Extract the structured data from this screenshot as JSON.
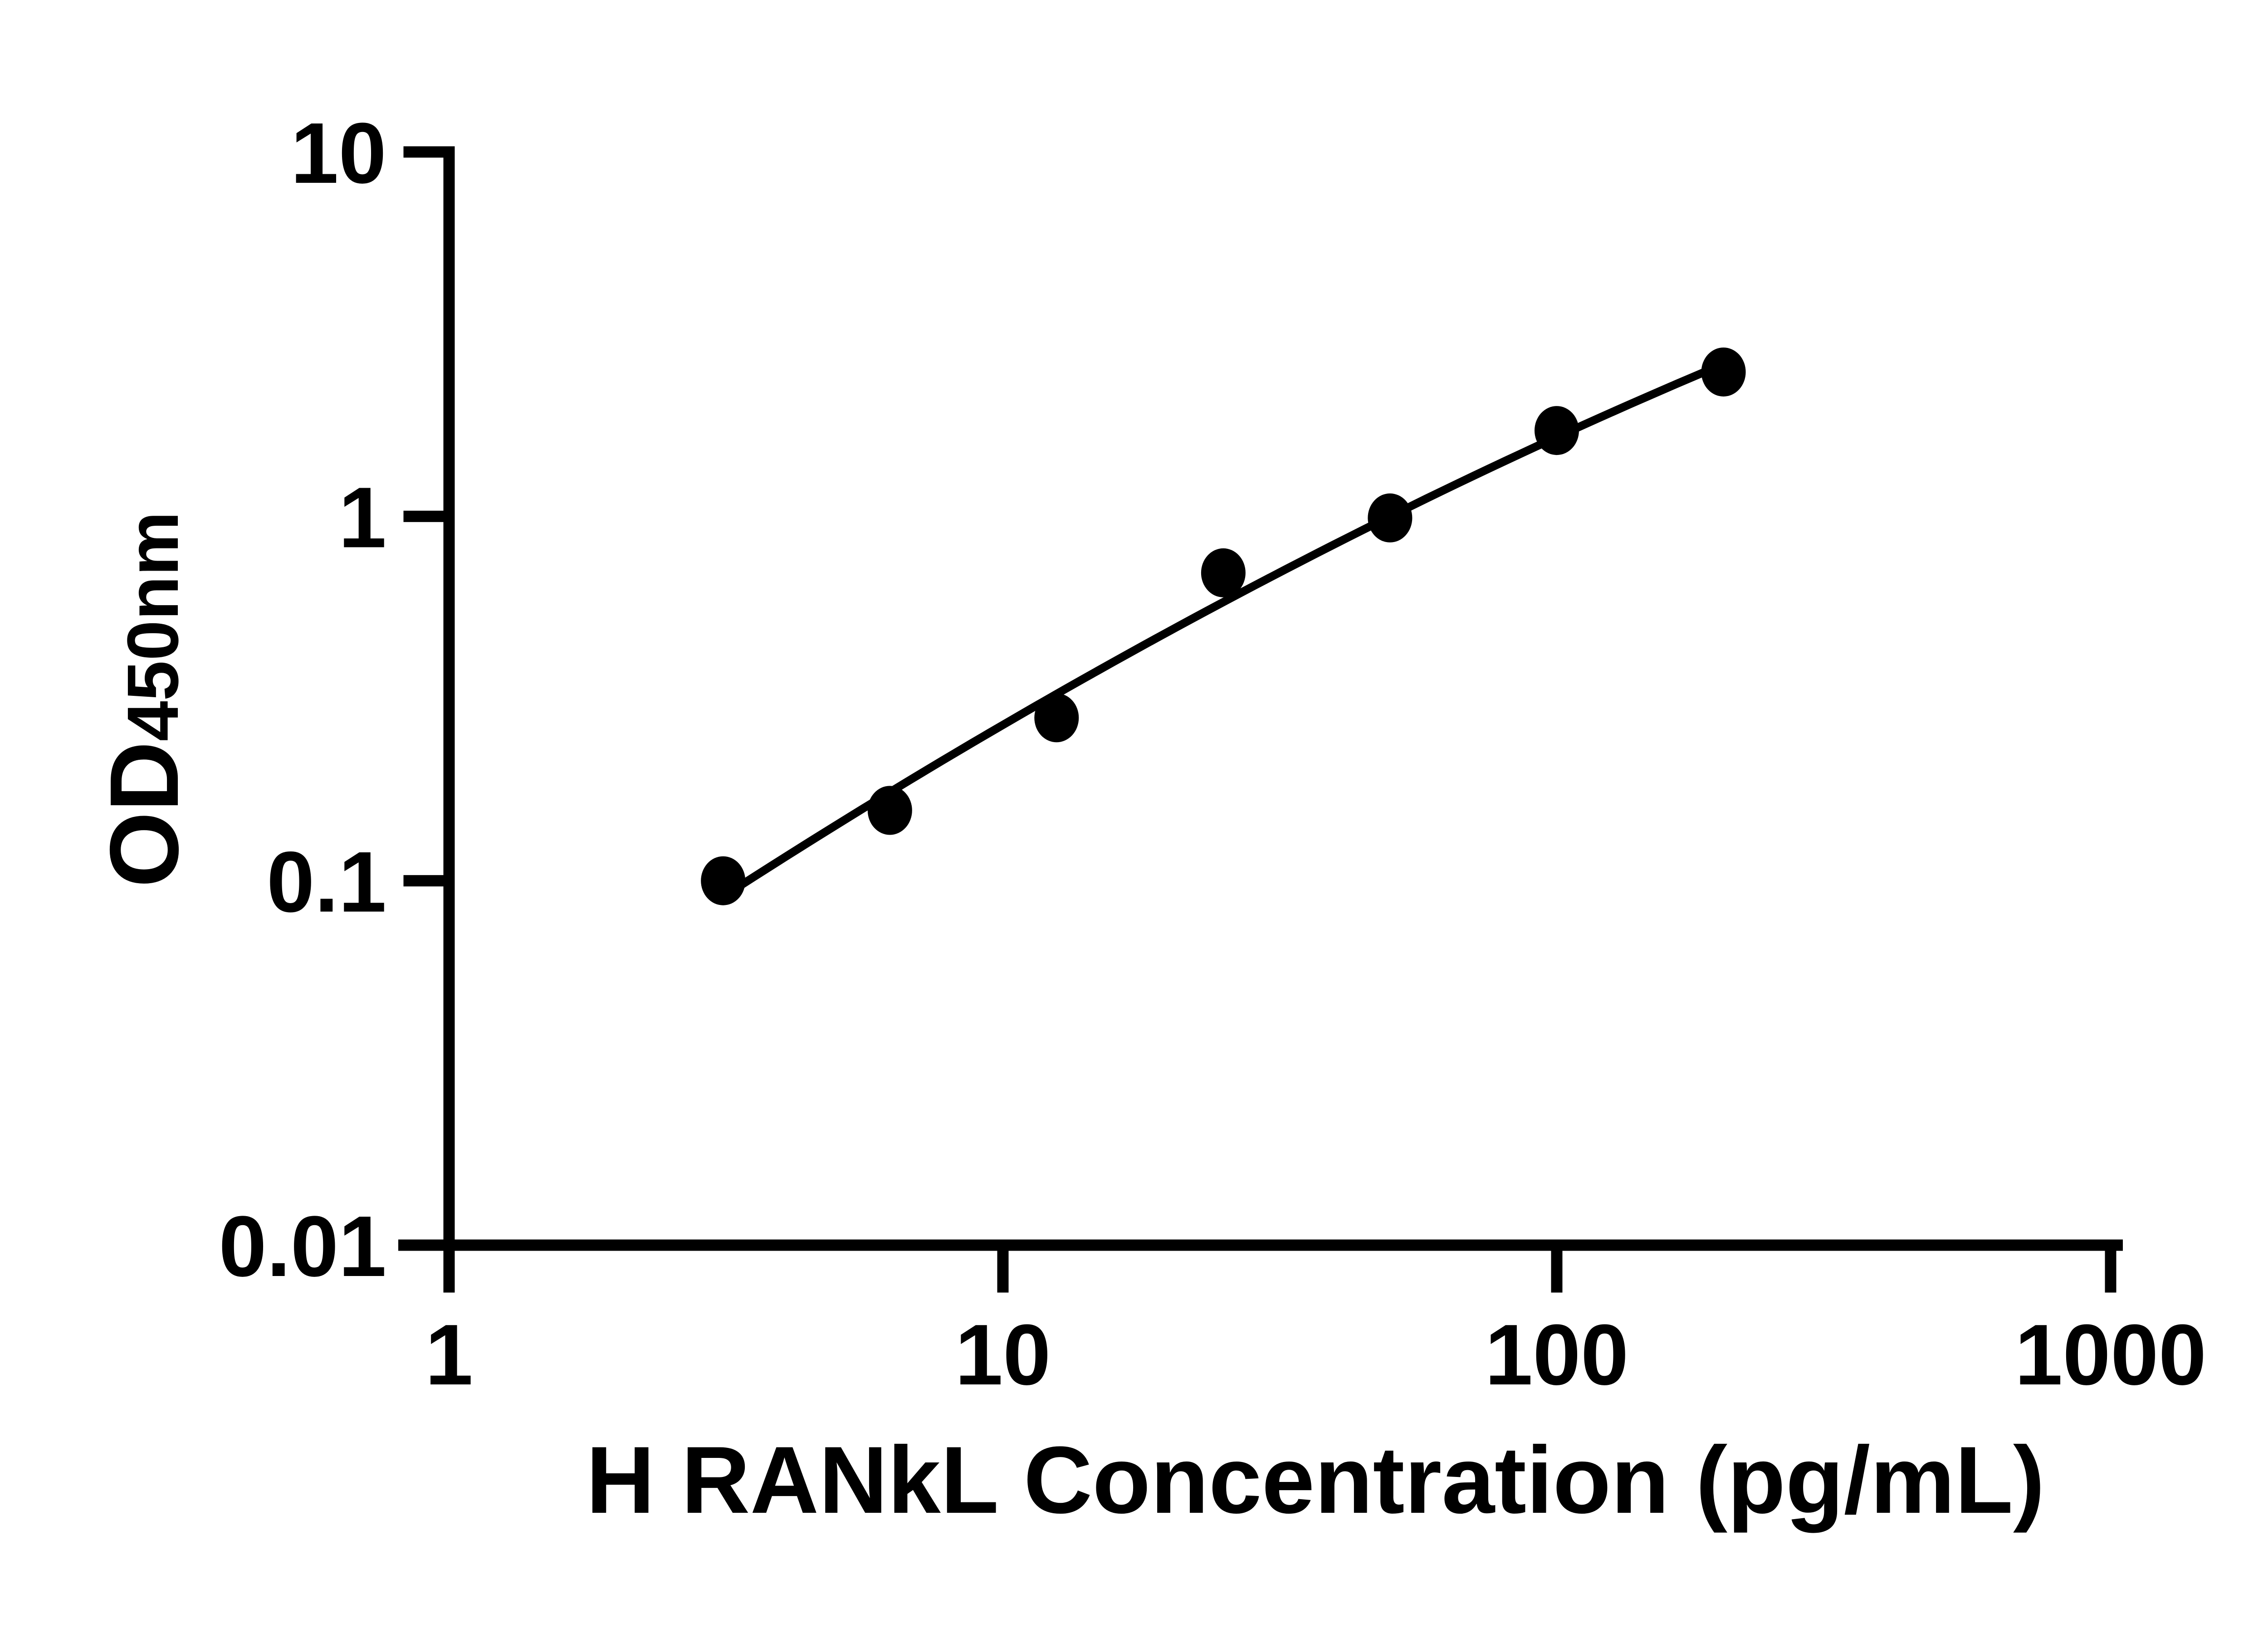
{
  "figure": {
    "background": "#ffffff",
    "ink_color": "#000000"
  },
  "chart_data": {
    "type": "scatter",
    "title": "",
    "xlabel": "H RANkL Concentration (pg/mL)",
    "ylabel": {
      "main": "OD",
      "sub": "450nm"
    },
    "x_scale": "log10",
    "y_scale": "log10",
    "xlim": [
      1,
      1000
    ],
    "ylim": [
      0.01,
      10
    ],
    "grid": false,
    "legend": null,
    "x_ticks": [
      {
        "value": 1,
        "label": "1"
      },
      {
        "value": 10,
        "label": "10"
      },
      {
        "value": 100,
        "label": "100"
      },
      {
        "value": 1000,
        "label": "1000"
      }
    ],
    "y_ticks": [
      {
        "value": 10,
        "label": "10"
      },
      {
        "value": 1,
        "label": "1"
      },
      {
        "value": 0.1,
        "label": "0.1"
      },
      {
        "value": 0.01,
        "label": "0.01"
      }
    ],
    "series": [
      {
        "name": "standard-curve-points",
        "marker": "filled-circle",
        "color": "#000000",
        "points": [
          {
            "x": 3.125,
            "y": 0.1
          },
          {
            "x": 6.25,
            "y": 0.156
          },
          {
            "x": 12.5,
            "y": 0.28
          },
          {
            "x": 25,
            "y": 0.7
          },
          {
            "x": 50,
            "y": 0.99
          },
          {
            "x": 100,
            "y": 1.72
          },
          {
            "x": 200,
            "y": 2.49
          }
        ]
      }
    ],
    "fit_curve": {
      "description": "smooth fitted line through points, quadratic in log10(x)-log10(y) space",
      "coefficients": {
        "a": -1.5522,
        "b": 1.0749,
        "c": -0.095
      },
      "x_range": [
        3.125,
        200
      ],
      "color": "#000000"
    }
  }
}
